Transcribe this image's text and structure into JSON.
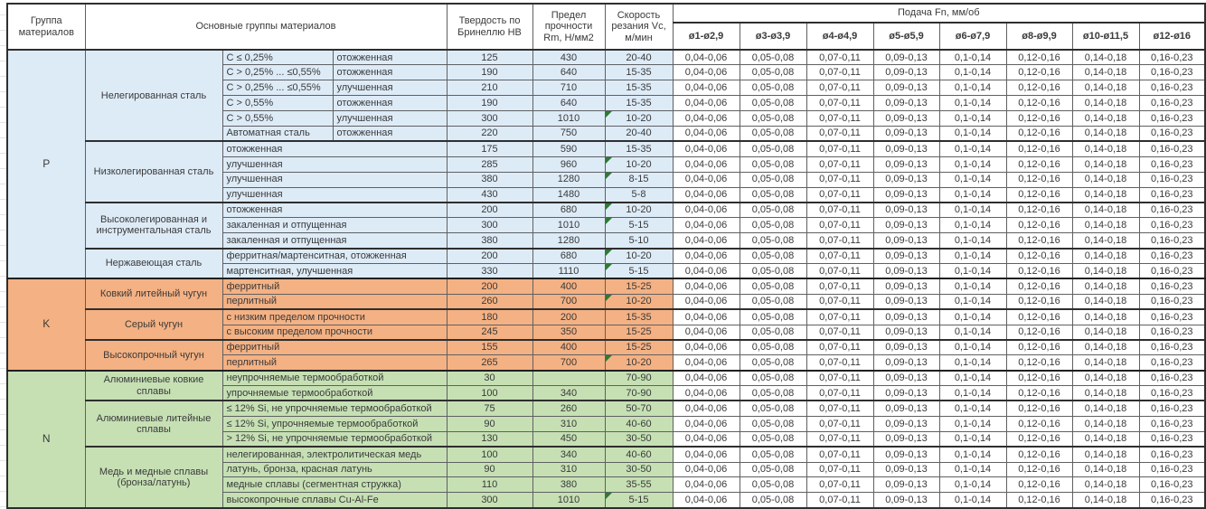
{
  "header": {
    "col_group": "Группа материалов",
    "col_main": "Основные группы материалов",
    "col_hb": "Твердость по Бринеллю HB",
    "col_rm": "Предел прочности Rm, Н/мм2",
    "col_vc": "Скорость резания Vc, м/мин",
    "col_feed": "Подача Fn, мм/об",
    "feed_cols": [
      "ø1-ø2,9",
      "ø3-ø3,9",
      "ø4-ø4,9",
      "ø5-ø5,9",
      "ø6-ø7,9",
      "ø8-ø9,9",
      "ø10-ø11,5",
      "ø12-ø16"
    ]
  },
  "feed_values": [
    "0,04-0,06",
    "0,05-0,08",
    "0,07-0,11",
    "0,09-0,13",
    "0,1-0,14",
    "0,12-0,16",
    "0,14-0,18",
    "0,16-0,23"
  ],
  "colors": {
    "flag_green": "#2d7a33",
    "border_dark": "#2e2e2e",
    "group_P": "#DDEBF7",
    "group_K": "#F4B183",
    "group_N": "#C6E0B4"
  },
  "groups": [
    {
      "code": "P",
      "color": "#DDEBF7",
      "families": [
        {
          "name": "Нелегированная сталь",
          "rows": [
            {
              "c1": "C ≤ 0,25%",
              "c2": "отожженная",
              "hb": "125",
              "rm": "430",
              "vc": "20-40",
              "flag": false
            },
            {
              "c1": "C > 0,25% ... ≤0,55%",
              "c2": "отожженная",
              "hb": "190",
              "rm": "640",
              "vc": "15-35",
              "flag": false
            },
            {
              "c1": "C > 0,25% ... ≤0,55%",
              "c2": "улучшенная",
              "hb": "210",
              "rm": "710",
              "vc": "15-35",
              "flag": false
            },
            {
              "c1": "C > 0,55%",
              "c2": "отожженная",
              "hb": "190",
              "rm": "640",
              "vc": "15-35",
              "flag": false
            },
            {
              "c1": "C > 0,55%",
              "c2": "улучшенная",
              "hb": "300",
              "rm": "1010",
              "vc": "10-20",
              "flag": true
            },
            {
              "c1": "Автоматная сталь",
              "c2": "отожженная",
              "hb": "220",
              "rm": "750",
              "vc": "20-40",
              "flag": false
            }
          ]
        },
        {
          "name": "Низколегированная сталь",
          "rows": [
            {
              "desc": "отожженная",
              "hb": "175",
              "rm": "590",
              "vc": "15-35",
              "flag": false
            },
            {
              "desc": "улучшенная",
              "hb": "285",
              "rm": "960",
              "vc": "10-20",
              "flag": true
            },
            {
              "desc": "улучшенная",
              "hb": "380",
              "rm": "1280",
              "vc": "8-15",
              "flag": true
            },
            {
              "desc": "улучшенная",
              "hb": "430",
              "rm": "1480",
              "vc": "5-8",
              "flag": false
            }
          ]
        },
        {
          "name": "Высоколегированная и инструментальная сталь",
          "rows": [
            {
              "desc": "отожженная",
              "hb": "200",
              "rm": "680",
              "vc": "10-20",
              "flag": true
            },
            {
              "desc": "закаленная и отпущенная",
              "hb": "300",
              "rm": "1010",
              "vc": "5-15",
              "flag": true
            },
            {
              "desc": "закаленная и отпущенная",
              "hb": "380",
              "rm": "1280",
              "vc": "5-10",
              "flag": false
            }
          ]
        },
        {
          "name": "Нержавеющая сталь",
          "rows": [
            {
              "desc": "ферритная/мартенситная, отожженная",
              "hb": "200",
              "rm": "680",
              "vc": "10-20",
              "flag": true
            },
            {
              "desc": "мартенситная, улучшенная",
              "hb": "330",
              "rm": "1110",
              "vc": "5-15",
              "flag": true
            }
          ]
        }
      ]
    },
    {
      "code": "K",
      "color": "#F4B183",
      "families": [
        {
          "name": "Ковкий литейный чугун",
          "rows": [
            {
              "desc": "ферритный",
              "hb": "200",
              "rm": "400",
              "vc": "15-25",
              "flag": false
            },
            {
              "desc": "перлитный",
              "hb": "260",
              "rm": "700",
              "vc": "10-20",
              "flag": true
            }
          ]
        },
        {
          "name": "Серый чугун",
          "rows": [
            {
              "desc": "с низким пределом прочности",
              "hb": "180",
              "rm": "200",
              "vc": "15-35",
              "flag": false
            },
            {
              "desc": "с высоким пределом прочности",
              "hb": "245",
              "rm": "350",
              "vc": "15-25",
              "flag": false
            }
          ]
        },
        {
          "name": "Высокопрочный чугун",
          "rows": [
            {
              "desc": "ферритный",
              "hb": "155",
              "rm": "400",
              "vc": "15-25",
              "flag": false
            },
            {
              "desc": "перлитный",
              "hb": "265",
              "rm": "700",
              "vc": "10-20",
              "flag": true
            }
          ]
        }
      ]
    },
    {
      "code": "N",
      "color": "#C6E0B4",
      "families": [
        {
          "name": "Алюминиевые ковкие сплавы",
          "rows": [
            {
              "desc": "неупрочняемые термообработкой",
              "hb": "30",
              "rm": "",
              "vc": "70-90",
              "flag": false
            },
            {
              "desc": "упрочняемые термообработкой",
              "hb": "100",
              "rm": "340",
              "vc": "70-90",
              "flag": false
            }
          ]
        },
        {
          "name": "Алюминиевые литейные сплавы",
          "rows": [
            {
              "desc": "≤ 12% Si, не упрочняемые термообработкой",
              "hb": "75",
              "rm": "260",
              "vc": "50-70",
              "flag": false
            },
            {
              "desc": "≤ 12% Si, упрочняемые термообработкой",
              "hb": "90",
              "rm": "310",
              "vc": "40-60",
              "flag": false
            },
            {
              "desc": "> 12% Si, не упрочняемые термообработкой",
              "hb": "130",
              "rm": "450",
              "vc": "30-50",
              "flag": false
            }
          ]
        },
        {
          "name": "Медь и медные сплавы (бронза/латунь)",
          "rows": [
            {
              "desc": "нелегированная, электролитическая медь",
              "hb": "100",
              "rm": "340",
              "vc": "40-60",
              "flag": false
            },
            {
              "desc": "латунь, бронза, красная латунь",
              "hb": "90",
              "rm": "310",
              "vc": "30-50",
              "flag": false
            },
            {
              "desc": "медные сплавы (сегментная стружка)",
              "hb": "110",
              "rm": "380",
              "vc": "35-55",
              "flag": false
            },
            {
              "desc": "высокопрочные сплавы Cu-Al-Fe",
              "hb": "300",
              "rm": "1010",
              "vc": "5-15",
              "flag": true
            }
          ]
        }
      ]
    }
  ]
}
